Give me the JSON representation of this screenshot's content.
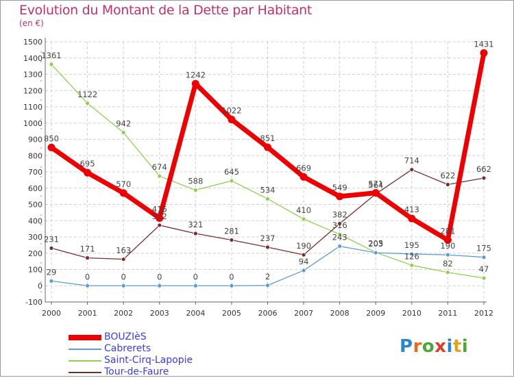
{
  "header": {
    "title": "Evolution du Montant de la Dette par Habitant",
    "subtitle": "(en €)"
  },
  "logo": {
    "letters": [
      "P",
      "r",
      "o",
      "x",
      "i",
      "t",
      "i"
    ],
    "colors": [
      "#2a86d4",
      "#e86a1a",
      "#4aa83a",
      "#e23a2a",
      "#2a86d4",
      "#e8a21a",
      "#4aa83a"
    ]
  },
  "chart_data": {
    "type": "line",
    "title": "Evolution du Montant de la Dette par Habitant",
    "subtitle": "(en €)",
    "xlabel": "",
    "ylabel": "",
    "x": [
      "2000",
      "2001",
      "2002",
      "2003",
      "2004",
      "2005",
      "2006",
      "2007",
      "2008",
      "2009",
      "2010",
      "2011",
      "2012"
    ],
    "ylim": [
      -100,
      1500
    ],
    "yticks": [
      -100,
      0,
      100,
      200,
      300,
      400,
      500,
      600,
      700,
      800,
      900,
      1000,
      1100,
      1200,
      1300,
      1400,
      1500
    ],
    "grid": true,
    "legend_position": "bottom-left",
    "series": [
      {
        "name": "BOUZIèS",
        "color": "#ee0000",
        "values": [
          850,
          695,
          570,
          416,
          1242,
          1022,
          851,
          669,
          549,
          571,
          413,
          281,
          1431
        ]
      },
      {
        "name": "Cabrerets",
        "color": "#5b9bd5",
        "values": [
          29,
          0,
          0,
          0,
          0,
          0,
          2,
          94,
          243,
          203,
          195,
          190,
          175
        ]
      },
      {
        "name": "Saint-Cirq-Lapopie",
        "color": "#8fd14f",
        "values": [
          1361,
          1122,
          942,
          674,
          588,
          645,
          534,
          410,
          316,
          205,
          126,
          82,
          47
        ]
      },
      {
        "name": "Tour-de-Faure",
        "color": "#7b2c2c",
        "values": [
          231,
          171,
          163,
          372,
          321,
          281,
          237,
          190,
          382,
          564,
          714,
          622,
          662
        ]
      }
    ]
  }
}
